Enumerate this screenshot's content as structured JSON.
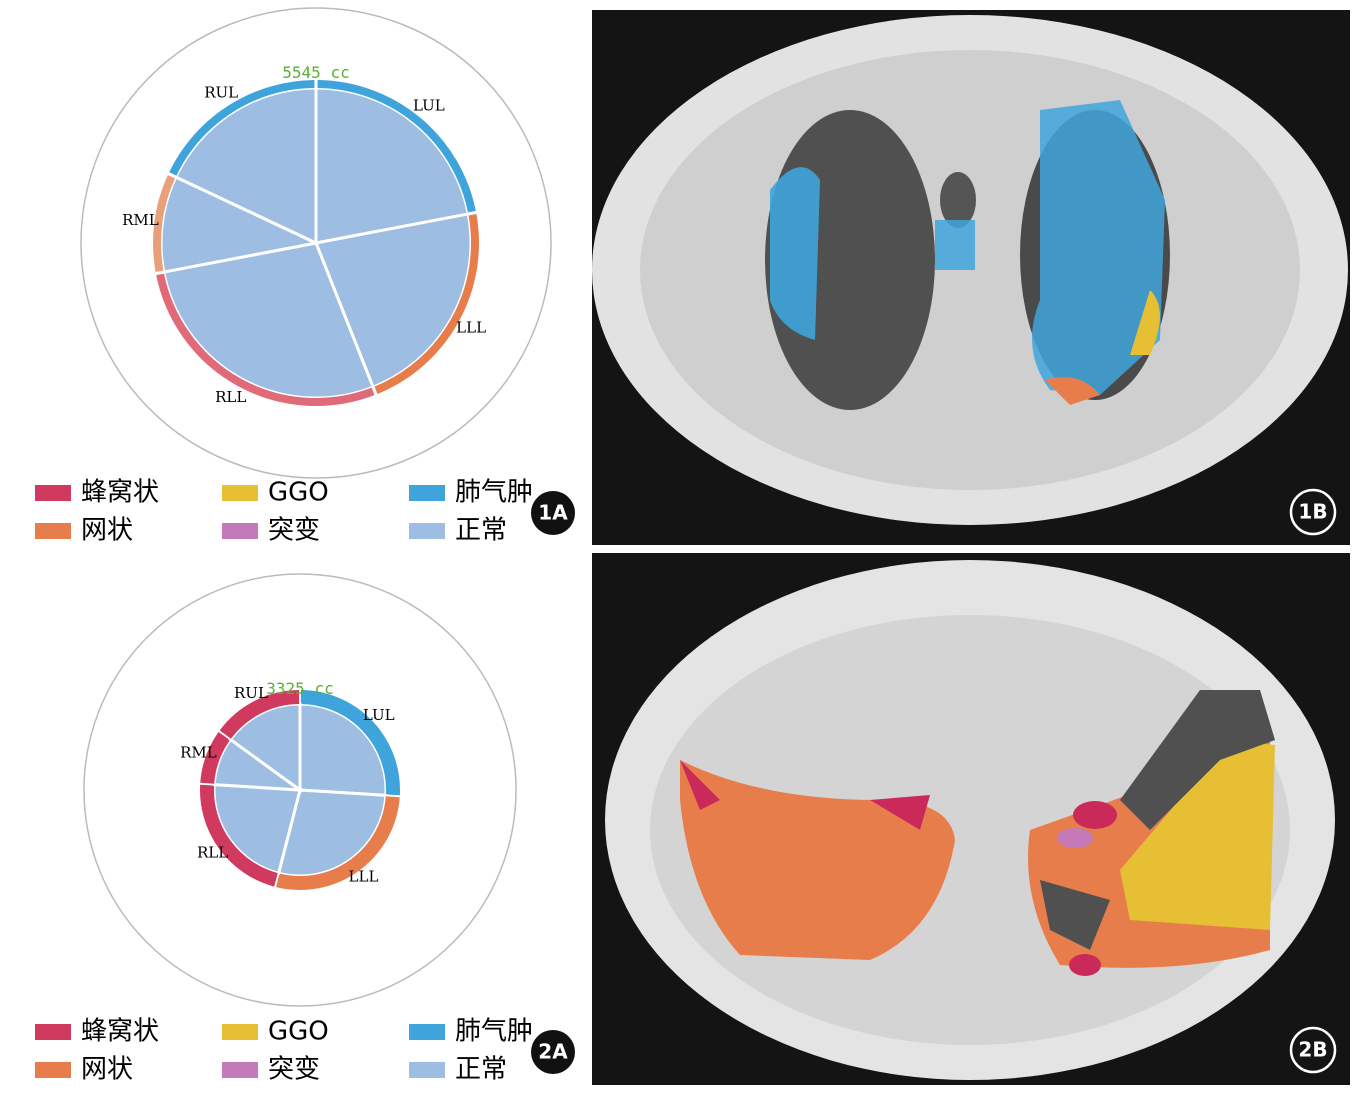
{
  "chart_data": [
    {
      "type": "pie",
      "panel": "1A",
      "total": "5545 cc",
      "categories": [
        "LUL",
        "LLL",
        "RLL",
        "RML",
        "RUL"
      ],
      "values": [
        22,
        22,
        28,
        10,
        18
      ],
      "color": "#9dbde3",
      "ring_colors": [
        "#3fa4dc",
        "#e87d4c",
        "#e06a78",
        "#e8a07a",
        "#3fa4dc"
      ],
      "legend": [
        {
          "name": "蜂窝状",
          "color": "#d03a5f"
        },
        {
          "name": "GGO",
          "color": "#e6bf35"
        },
        {
          "name": "肺气肿",
          "color": "#3fa4dc"
        },
        {
          "name": "网状",
          "color": "#e87d4c"
        },
        {
          "name": "突变",
          "color": "#c47ab8"
        },
        {
          "name": "正常",
          "color": "#9dbde3"
        }
      ]
    },
    {
      "type": "pie",
      "panel": "2A",
      "total": "3325 cc",
      "categories": [
        "LUL",
        "LLL",
        "RLL",
        "RML",
        "RUL"
      ],
      "values": [
        26,
        28,
        22,
        9,
        15
      ],
      "color": "#9dbde3",
      "ring_colors": [
        "#3fa4dc",
        "#e87d4c",
        "#d03a5f",
        "#d03a5f",
        "#d03a5f"
      ],
      "legend": [
        {
          "name": "蜂窝状",
          "color": "#d03a5f"
        },
        {
          "name": "GGO",
          "color": "#e6bf35"
        },
        {
          "name": "肺气肿",
          "color": "#3fa4dc"
        },
        {
          "name": "网状",
          "color": "#e87d4c"
        },
        {
          "name": "突变",
          "color": "#c47ab8"
        },
        {
          "name": "正常",
          "color": "#9dbde3"
        }
      ]
    }
  ],
  "images": [
    {
      "label": "1B"
    },
    {
      "label": "2B"
    }
  ]
}
